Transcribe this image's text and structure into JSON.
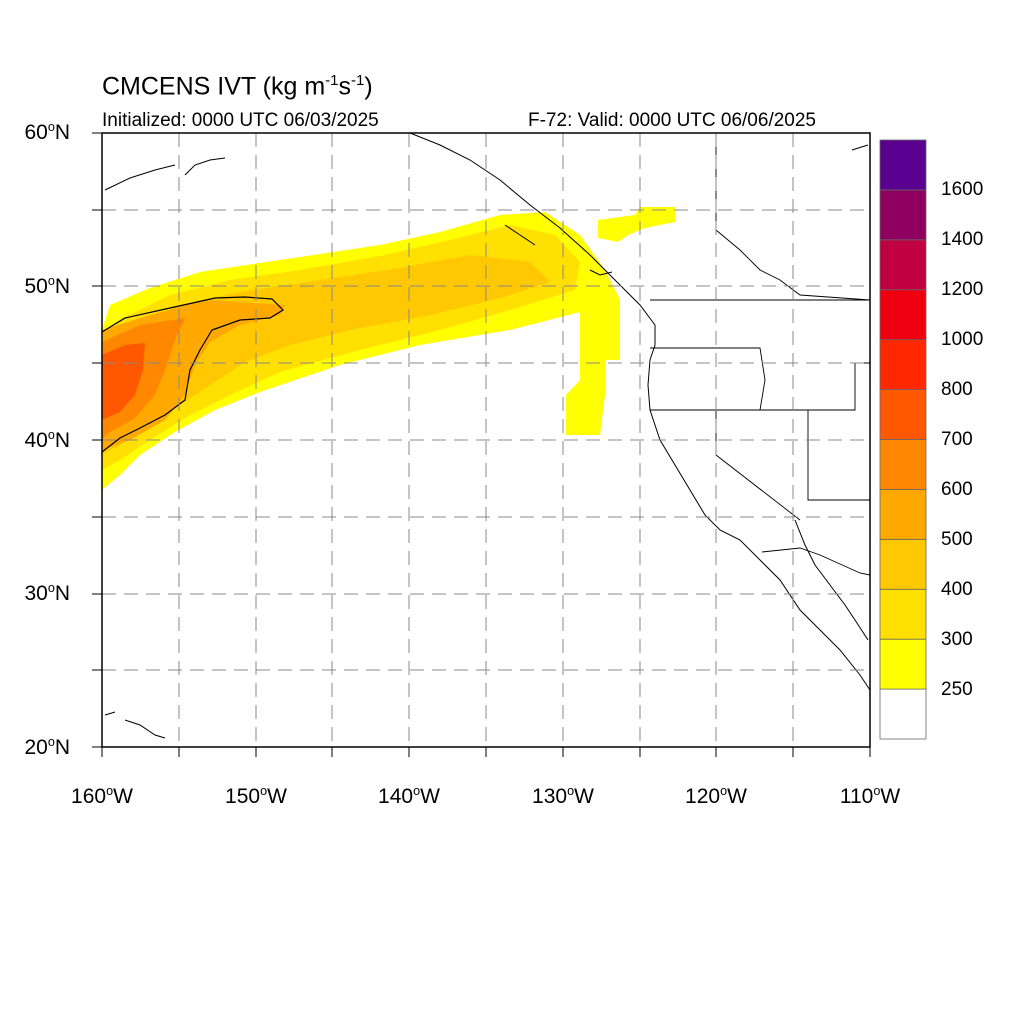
{
  "header": {
    "title_main": "CMCENS IVT (kg m",
    "title_exp1": "-1",
    "title_mid": "s",
    "title_exp2": "-1",
    "title_end": ")",
    "initialized": "Initialized: 0000 UTC 06/03/2025",
    "valid": "F-72: Valid: 0000 UTC 06/06/2025"
  },
  "axes": {
    "lat_labels": [
      {
        "num": "60",
        "deg": "o",
        "hem": "N"
      },
      {
        "num": "50",
        "deg": "o",
        "hem": "N"
      },
      {
        "num": "40",
        "deg": "o",
        "hem": "N"
      },
      {
        "num": "30",
        "deg": "o",
        "hem": "N"
      },
      {
        "num": "20",
        "deg": "o",
        "hem": "N"
      }
    ],
    "lon_labels": [
      {
        "num": "160",
        "deg": "o",
        "hem": "W"
      },
      {
        "num": "150",
        "deg": "o",
        "hem": "W"
      },
      {
        "num": "140",
        "deg": "o",
        "hem": "W"
      },
      {
        "num": "130",
        "deg": "o",
        "hem": "W"
      },
      {
        "num": "120",
        "deg": "o",
        "hem": "W"
      },
      {
        "num": "110",
        "deg": "o",
        "hem": "W"
      }
    ],
    "lon_range": [
      -160,
      -110
    ],
    "lat_range": [
      20,
      60
    ],
    "grid": true
  },
  "colorbar": {
    "levels": [
      "250",
      "300",
      "400",
      "500",
      "600",
      "700",
      "800",
      "1000",
      "1200",
      "1400",
      "1600"
    ],
    "colors": [
      "#ffffff",
      "#ffff00",
      "#ffe000",
      "#ffc800",
      "#ffa800",
      "#ff8800",
      "#ff5800",
      "#ff2800",
      "#ee0010",
      "#c00040",
      "#900060",
      "#5a0090"
    ]
  },
  "ivt_field": {
    "units": "kg m-1 s-1",
    "feature": "atmospheric river from central North Pacific toward Pacific Northwest",
    "max_level": "700",
    "contour_level": "500"
  }
}
